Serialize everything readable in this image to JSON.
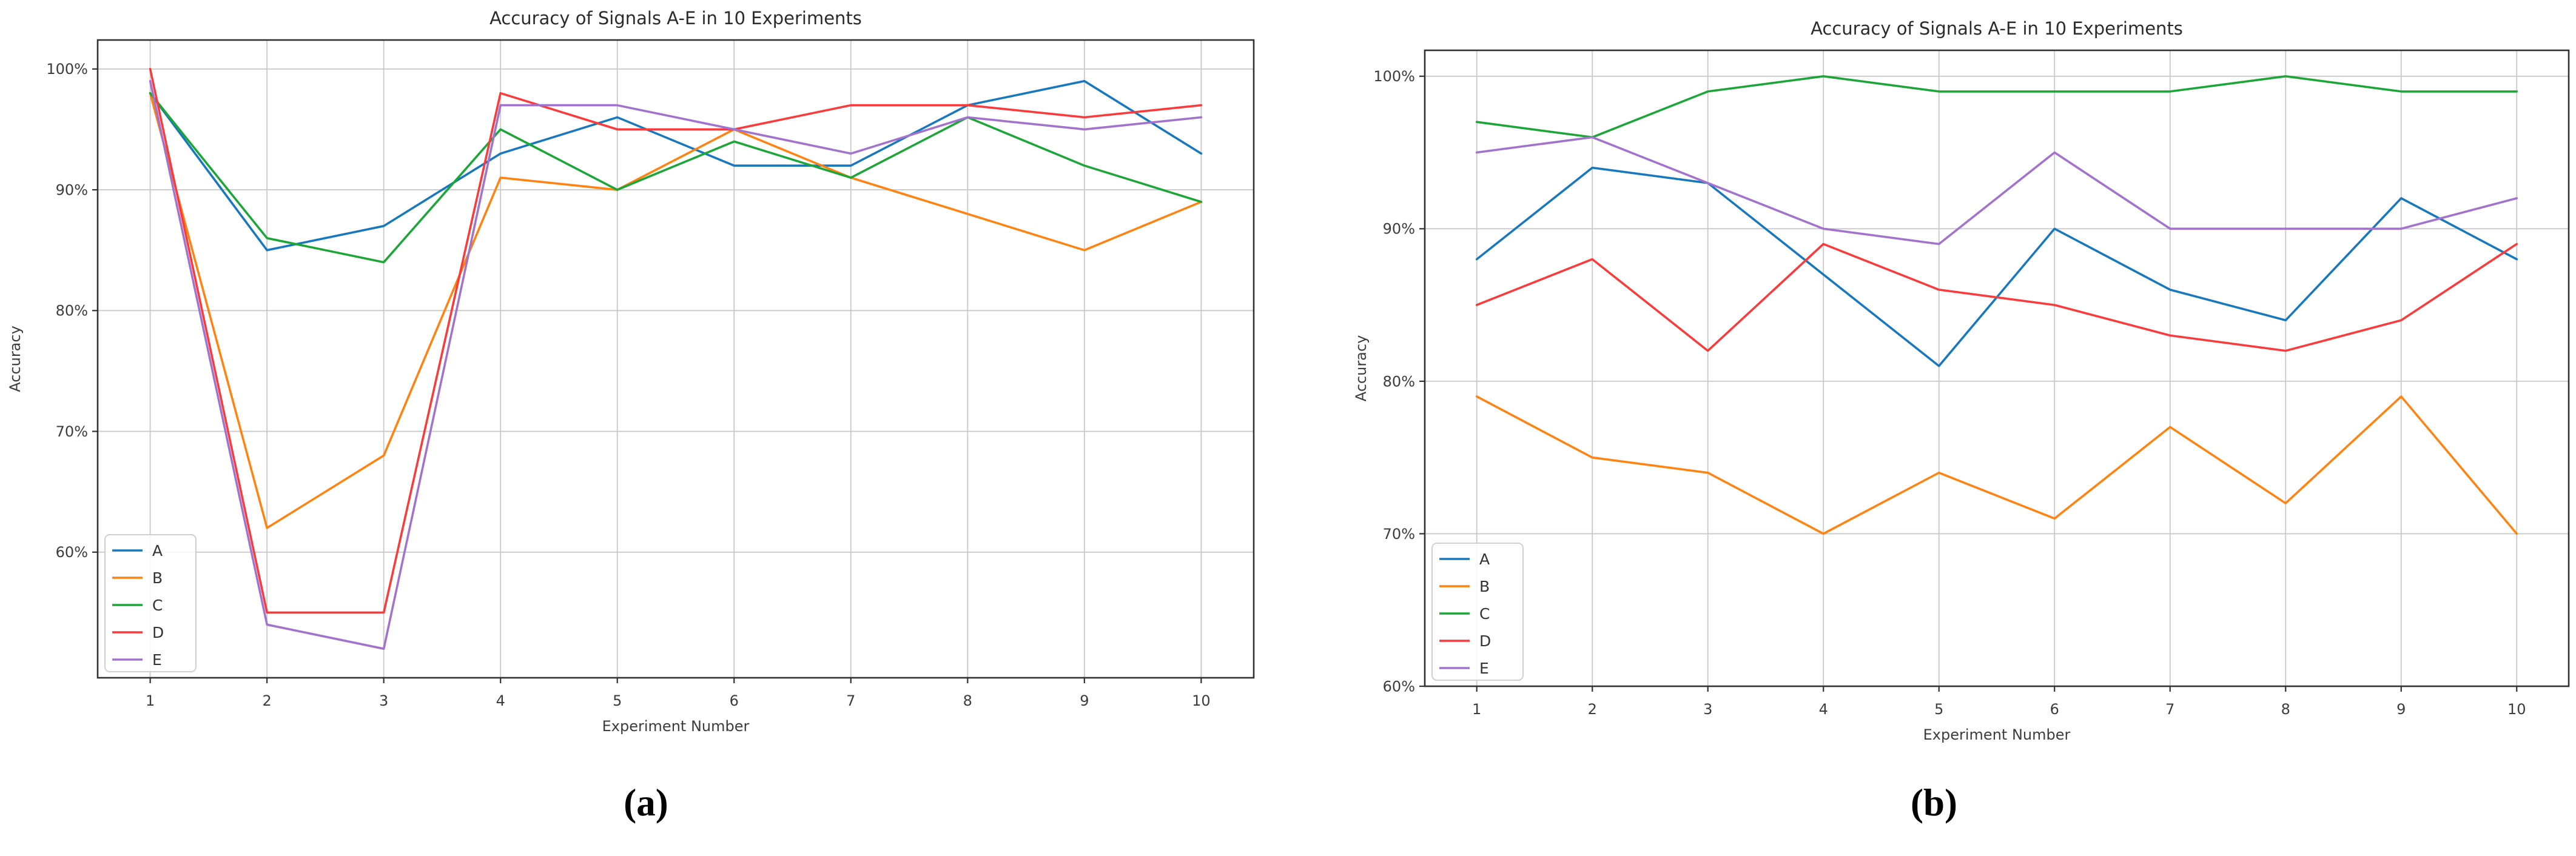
{
  "page": {
    "background": "#ffffff"
  },
  "chart_data": [
    {
      "caption": "(a)",
      "type": "line",
      "title": "Accuracy of Signals A-E in 10 Experiments",
      "xlabel": "Experiment Number",
      "ylabel": "Accuracy",
      "x": [
        1,
        2,
        3,
        4,
        5,
        6,
        7,
        8,
        9,
        10
      ],
      "xticklabels": [
        "1",
        "2",
        "3",
        "4",
        "5",
        "6",
        "7",
        "8",
        "9",
        "10"
      ],
      "yticks": [
        60,
        70,
        80,
        90,
        100
      ],
      "yticklabels": [
        "60%",
        "70%",
        "80%",
        "90%",
        "100%"
      ],
      "ylim": [
        49.6,
        102.4
      ],
      "grid": true,
      "legend_position": "lower left",
      "series": [
        {
          "name": "A",
          "color": "#1878be",
          "values": [
            98,
            85,
            87,
            93,
            96,
            92,
            92,
            97,
            99,
            93
          ]
        },
        {
          "name": "B",
          "color": "#ff8311",
          "values": [
            98,
            62,
            68,
            91,
            90,
            95,
            91,
            88,
            85,
            89
          ]
        },
        {
          "name": "C",
          "color": "#1ca637",
          "values": [
            98,
            86,
            84,
            95,
            90,
            94,
            91,
            96,
            92,
            89
          ]
        },
        {
          "name": "D",
          "color": "#f93b3b",
          "values": [
            100,
            55,
            55,
            98,
            95,
            95,
            97,
            97,
            96,
            97
          ]
        },
        {
          "name": "E",
          "color": "#a173cc",
          "values": [
            99,
            54,
            52,
            97,
            97,
            95,
            93,
            96,
            95,
            96
          ]
        }
      ]
    },
    {
      "caption": "(b)",
      "type": "line",
      "title": "Accuracy of Signals A-E in 10 Experiments",
      "xlabel": "Experiment Number",
      "ylabel": "Accuracy",
      "x": [
        1,
        2,
        3,
        4,
        5,
        6,
        7,
        8,
        9,
        10
      ],
      "xticklabels": [
        "1",
        "2",
        "3",
        "4",
        "5",
        "6",
        "7",
        "8",
        "9",
        "10"
      ],
      "yticks": [
        60,
        70,
        80,
        90,
        100
      ],
      "yticklabels": [
        "60%",
        "70%",
        "80%",
        "90%",
        "100%"
      ],
      "ylim": [
        60,
        101.7
      ],
      "grid": true,
      "legend_position": "lower left",
      "series": [
        {
          "name": "A",
          "color": "#1878be",
          "values": [
            88,
            94,
            93,
            87,
            81,
            90,
            86,
            84,
            92,
            88
          ]
        },
        {
          "name": "B",
          "color": "#ff8311",
          "values": [
            79,
            75,
            74,
            70,
            74,
            71,
            77,
            72,
            79,
            70
          ]
        },
        {
          "name": "C",
          "color": "#1ca637",
          "values": [
            97,
            96,
            99,
            100,
            99,
            99,
            99,
            100,
            99,
            99
          ]
        },
        {
          "name": "D",
          "color": "#f93b3b",
          "values": [
            85,
            88,
            82,
            89,
            86,
            85,
            83,
            82,
            84,
            89
          ]
        },
        {
          "name": "E",
          "color": "#a173cc",
          "values": [
            95,
            96,
            93,
            90,
            89,
            95,
            90,
            90,
            90,
            92
          ]
        }
      ]
    }
  ]
}
